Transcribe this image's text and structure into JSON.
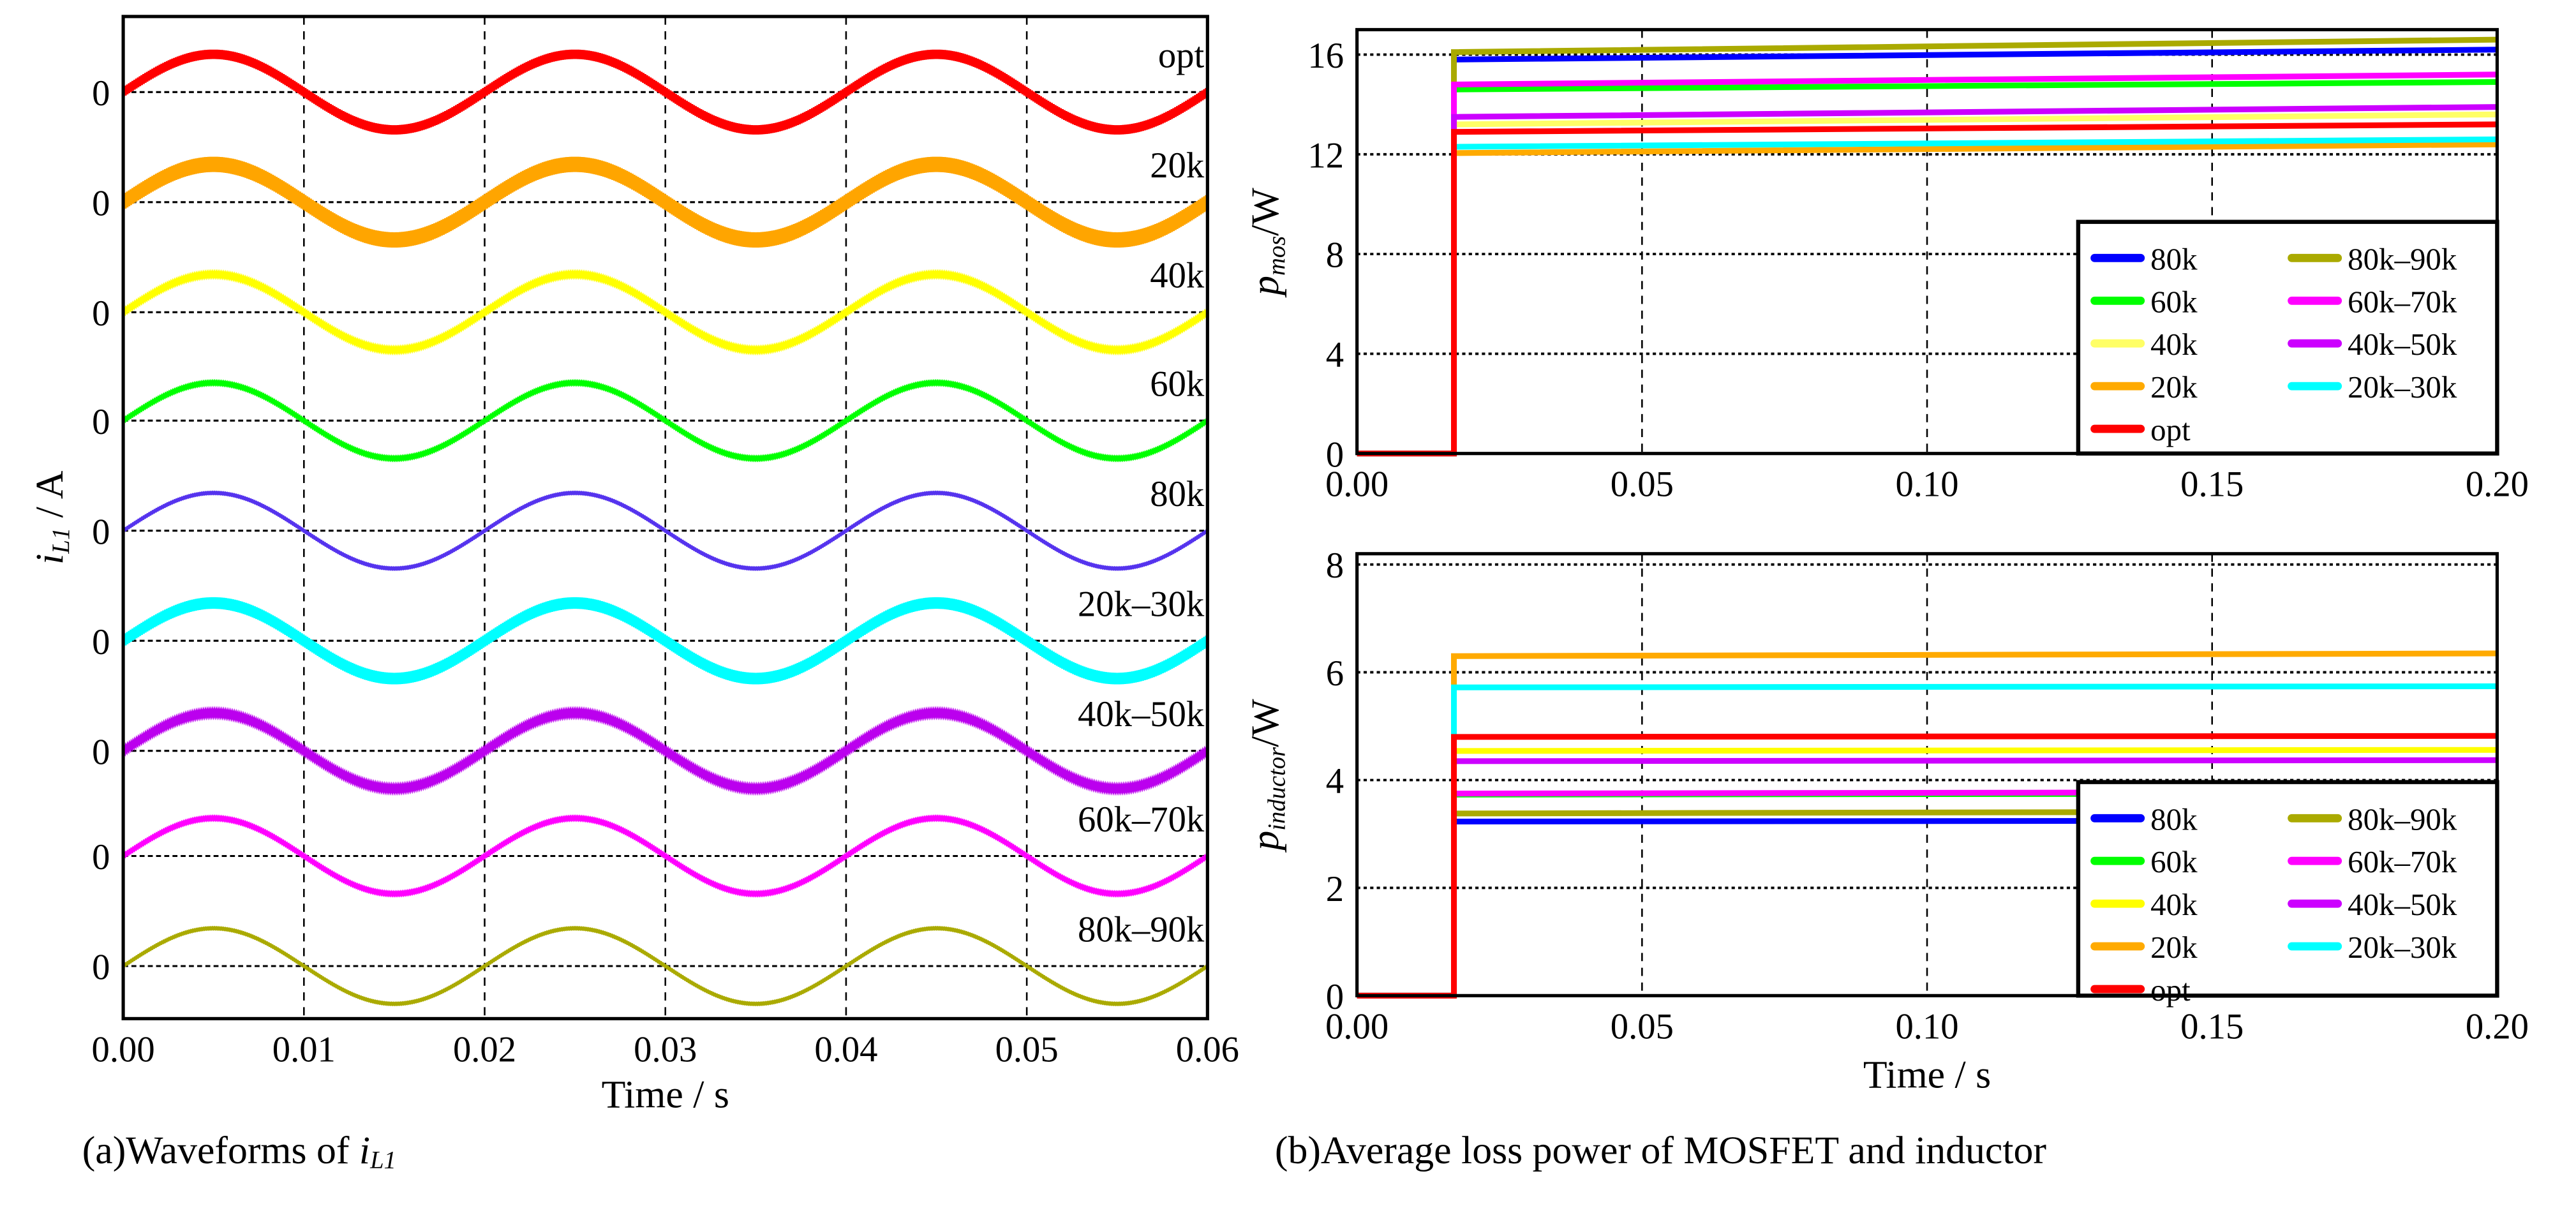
{
  "chart_data": [
    {
      "type": "line",
      "title": "",
      "caption_prefix": "(a)Waveforms of ",
      "caption_var": "i",
      "caption_sub": "L1",
      "xlabel": "Time / s",
      "ylabel_var": "i",
      "ylabel_sub": "L1",
      "ylabel_unit": " / A",
      "xlim": [
        0,
        0.06
      ],
      "xticks": [
        "0.00",
        "0.01",
        "0.02",
        "0.03",
        "0.04",
        "0.05",
        "0.06"
      ],
      "ytick_label": "0",
      "grid": true,
      "frequency_hz": 50,
      "series": [
        {
          "name": "opt",
          "color": "#FF0000",
          "ripple": 0.12
        },
        {
          "name": "20k",
          "color": "#FFA500",
          "ripple": 0.2
        },
        {
          "name": "40k",
          "color": "#FFFF00",
          "ripple": 0.03
        },
        {
          "name": "60k",
          "color": "#00FF00",
          "ripple": 0.02
        },
        {
          "name": "80k",
          "color": "#5533EE",
          "ripple": 0.01
        },
        {
          "name": "20k–30k",
          "color": "#00FFFF",
          "ripple": 0.15
        },
        {
          "name": "40k–50k",
          "color": "#BB00EE",
          "ripple": 0.04
        },
        {
          "name": "60k–70k",
          "color": "#FF00FF",
          "ripple": 0.02
        },
        {
          "name": "80k–90k",
          "color": "#AAAA00",
          "ripple": 0.01
        }
      ]
    },
    {
      "type": "line",
      "caption": "(b)Average loss power of MOSFET and inductor",
      "ylabel_var": "p",
      "ylabel_sub": "mos",
      "ylabel_unit": "/W",
      "xlabel": "",
      "xlim": [
        0,
        0.2
      ],
      "ylim": [
        0,
        17
      ],
      "xticks": [
        "0.00",
        "0.05",
        "0.10",
        "0.15",
        "0.20"
      ],
      "yticks": [
        "0",
        "4",
        "8",
        "12",
        "16"
      ],
      "step_time": 0.017,
      "legend_placement": "bottom-right",
      "series": [
        {
          "name": "80k",
          "color": "#0000FF",
          "start": 15.8,
          "end": 16.2
        },
        {
          "name": "80k–90k",
          "color": "#AAAA00",
          "start": 16.1,
          "end": 16.6
        },
        {
          "name": "60k",
          "color": "#00FF00",
          "start": 14.6,
          "end": 14.9
        },
        {
          "name": "60k–70k",
          "color": "#FF00FF",
          "start": 14.8,
          "end": 15.2
        },
        {
          "name": "40k",
          "color": "#FFFF66",
          "start": 13.2,
          "end": 13.6
        },
        {
          "name": "40k–50k",
          "color": "#CC00FF",
          "start": 13.5,
          "end": 13.9
        },
        {
          "name": "20k",
          "color": "#FFAA00",
          "start": 12.05,
          "end": 12.4
        },
        {
          "name": "20k–30k",
          "color": "#00FFFF",
          "start": 12.3,
          "end": 12.6
        },
        {
          "name": "opt",
          "color": "#FF0000",
          "start": 12.9,
          "end": 13.2
        }
      ]
    },
    {
      "type": "line",
      "ylabel_var": "p",
      "ylabel_sub": "inductor",
      "ylabel_unit": "/W",
      "xlabel": "Time / s",
      "xlim": [
        0,
        0.2
      ],
      "ylim": [
        0,
        8.2
      ],
      "xticks": [
        "0.00",
        "0.05",
        "0.10",
        "0.15",
        "0.20"
      ],
      "yticks": [
        "0",
        "2",
        "4",
        "6",
        "8"
      ],
      "step_time": 0.017,
      "legend_placement": "bottom-right",
      "series": [
        {
          "name": "80k",
          "color": "#0000FF",
          "start": 3.23,
          "end": 3.25
        },
        {
          "name": "80k–90k",
          "color": "#AAAA00",
          "start": 3.38,
          "end": 3.42
        },
        {
          "name": "60k",
          "color": "#00FF00",
          "start": 3.73,
          "end": 3.75
        },
        {
          "name": "60k–70k",
          "color": "#FF00FF",
          "start": 3.75,
          "end": 3.78
        },
        {
          "name": "40k",
          "color": "#FFFF00",
          "start": 4.54,
          "end": 4.56
        },
        {
          "name": "40k–50k",
          "color": "#CC00FF",
          "start": 4.35,
          "end": 4.37
        },
        {
          "name": "20k",
          "color": "#FFAA00",
          "start": 6.3,
          "end": 6.35
        },
        {
          "name": "20k–30k",
          "color": "#00FFFF",
          "start": 5.72,
          "end": 5.74
        },
        {
          "name": "opt",
          "color": "#FF0000",
          "start": 4.8,
          "end": 4.82
        }
      ]
    }
  ]
}
